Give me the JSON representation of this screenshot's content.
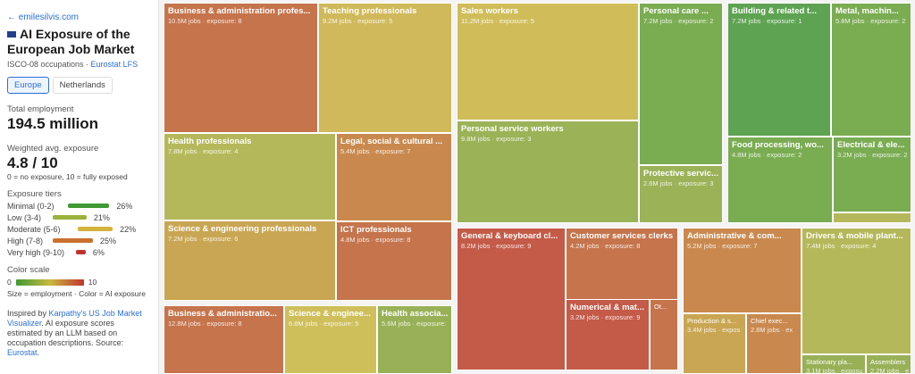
{
  "sidebar": {
    "back_link": "← emilesilvis.com",
    "title": "AI Exposure of the European Job Market",
    "subtitle_prefix": "ISCO-08 occupations · ",
    "subtitle_link": "Eurostat LFS",
    "tabs": [
      {
        "label": "Europe",
        "active": true
      },
      {
        "label": "Netherlands",
        "active": false
      }
    ],
    "total_label": "Total employment",
    "total_value": "194.5 million",
    "avg_label": "Weighted avg. exposure",
    "avg_value": "4.8 / 10",
    "avg_note": "0 = no exposure, 10 = fully exposed",
    "tiers_label": "Exposure tiers",
    "tiers": [
      {
        "name": "Minimal (0-2)",
        "pct": "26%",
        "value": 26,
        "color": "#3f9a35"
      },
      {
        "name": "Low (3-4)",
        "pct": "21%",
        "value": 21,
        "color": "#9bb23a"
      },
      {
        "name": "Moderate (5-6)",
        "pct": "22%",
        "value": 22,
        "color": "#d4b23c"
      },
      {
        "name": "High (7-8)",
        "pct": "25%",
        "value": 25,
        "color": "#c8702e"
      },
      {
        "name": "Very high (9-10)",
        "pct": "6%",
        "value": 6,
        "color": "#c0332d"
      }
    ],
    "scale_label": "Color scale",
    "scale_min": "0",
    "scale_max": "10",
    "scale_note": "Size = employment · Color = AI exposure",
    "inspired_prefix": "Inspired by ",
    "inspired_link": "Karpathy's US Job Market Visualizer",
    "inspired_text": ". AI exposure scores estimated by an LLM based on occupation descriptions. Source: ",
    "source_link": "Eurostat",
    "source_end": "."
  },
  "treemap": [
    {
      "title": "Business & administration profes...",
      "sub": "10.5M jobs · exposure: 8",
      "color": "#c5744c"
    },
    {
      "title": "Teaching professionals",
      "sub": "9.2M jobs · exposure: 5",
      "color": "#d0b95a"
    },
    {
      "title": "Health professionals",
      "sub": "7.8M jobs · exposure: 4",
      "color": "#b5b85a"
    },
    {
      "title": "Legal, social & cultural ...",
      "sub": "5.4M jobs · exposure: 7",
      "color": "#c9894e"
    },
    {
      "title": "Science & engineering professionals",
      "sub": "7.2M jobs · exposure: 6",
      "color": "#c9a653"
    },
    {
      "title": "ICT professionals",
      "sub": "4.8M jobs · exposure: 8",
      "color": "#c5744c"
    },
    {
      "title": "Business & administratio...",
      "sub": "12.8M jobs · exposure: 8",
      "color": "#c5744c"
    },
    {
      "title": "Science & enginee...",
      "sub": "6.8M jobs · exposure: 5",
      "color": "#cfbf5a"
    },
    {
      "title": "Health associa...",
      "sub": "5.6M jobs · exposure:",
      "color": "#98b157"
    },
    {
      "title": "Sales workers",
      "sub": "11.2M jobs · exposure: 5",
      "color": "#d0bd5a"
    },
    {
      "title": "Personal service workers",
      "sub": "9.8M jobs · exposure: 3",
      "color": "#9bb257"
    },
    {
      "title": "Personal care ...",
      "sub": "7.2M jobs · exposure: 2",
      "color": "#7aac52"
    },
    {
      "title": "Protective servic...",
      "sub": "2.6M jobs · exposure: 3",
      "color": "#9bb257"
    },
    {
      "title": "Building & related t...",
      "sub": "7.2M jobs · exposure: 1",
      "color": "#5ea352"
    },
    {
      "title": "Metal, machin...",
      "sub": "5.8M jobs · exposure: 2",
      "color": "#7aac52"
    },
    {
      "title": "Food processing, wo...",
      "sub": "4.8M jobs · exposure: 2",
      "color": "#7aac52"
    },
    {
      "title": "Electrical & ele...",
      "sub": "3.2M jobs · exposure: 2",
      "color": "#7aac52"
    },
    {
      "title": "",
      "sub": "",
      "color": "#b5b85a"
    },
    {
      "title": "General & keyboard cl...",
      "sub": "8.2M jobs · exposure: 9",
      "color": "#c45a48"
    },
    {
      "title": "Customer services clerks",
      "sub": "4.2M jobs · exposure: 8",
      "color": "#c5744c"
    },
    {
      "title": "Numerical & mat...",
      "sub": "3.2M jobs · exposure: 9",
      "color": "#c45a48"
    },
    {
      "title": "Ot...",
      "sub": "",
      "color": "#c5744c"
    },
    {
      "title": "Administrative & com...",
      "sub": "5.2M jobs · exposure: 7",
      "color": "#c9894e"
    },
    {
      "title": "Production & s...",
      "sub": "3.4M jobs · expos",
      "color": "#c9a653"
    },
    {
      "title": "Chief exec...",
      "sub": "2.8M jobs · ex",
      "color": "#c9894e"
    },
    {
      "title": "Drivers & mobile plant...",
      "sub": "7.4M jobs · exposure: 4",
      "color": "#b5b85a"
    },
    {
      "title": "Stationary pla...",
      "sub": "3.1M jobs · exposu",
      "color": "#98b157"
    },
    {
      "title": "Assemblers",
      "sub": "2.2M jobs · e",
      "color": "#98b157"
    }
  ]
}
